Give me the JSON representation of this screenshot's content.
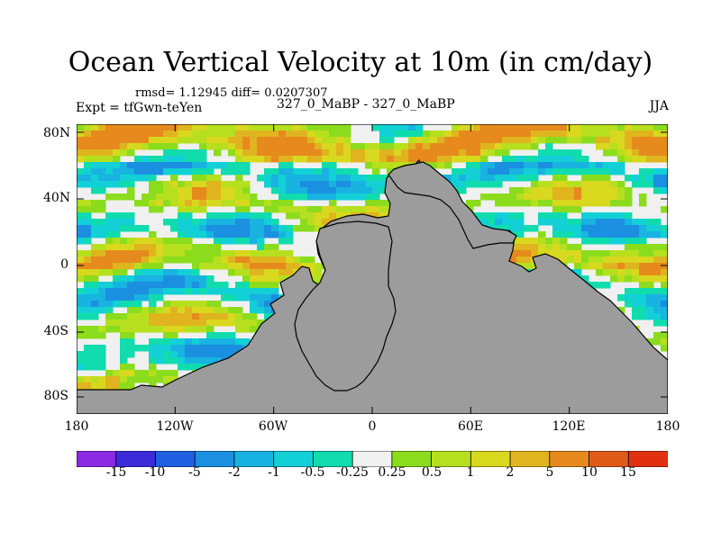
{
  "title": "Ocean Vertical Velocity at 10m (in cm/day)",
  "stats_line": "rmsd= 1.12945 diff= 0.0207307",
  "experiment_label": "Expt = tfGwn-teYen",
  "comparison_label": "327_0_MaBP - 327_0_MaBP",
  "season_label": "JJA",
  "y_ticks": [
    "80N",
    "40N",
    "0",
    "40S",
    "80S"
  ],
  "x_ticks": [
    "180",
    "120W",
    "60W",
    "0",
    "60E",
    "120E",
    "180"
  ],
  "colorbar": {
    "labels": [
      "-15",
      "-10",
      "-5",
      "-2",
      "-1",
      "-0.5",
      "-0.25",
      "0.25",
      "0.5",
      "1",
      "2",
      "5",
      "10",
      "15"
    ],
    "colors": [
      "#8a2be2",
      "#3b2bd8",
      "#1f5fe0",
      "#1b8fe0",
      "#18b3e0",
      "#12d0d6",
      "#10dcae",
      "#f0f0f0",
      "#8cdc1e",
      "#b6e01e",
      "#d8d81e",
      "#e0b41e",
      "#e68a1e",
      "#e05a1a",
      "#e03010"
    ]
  },
  "land_color": "#9c9c9c"
}
